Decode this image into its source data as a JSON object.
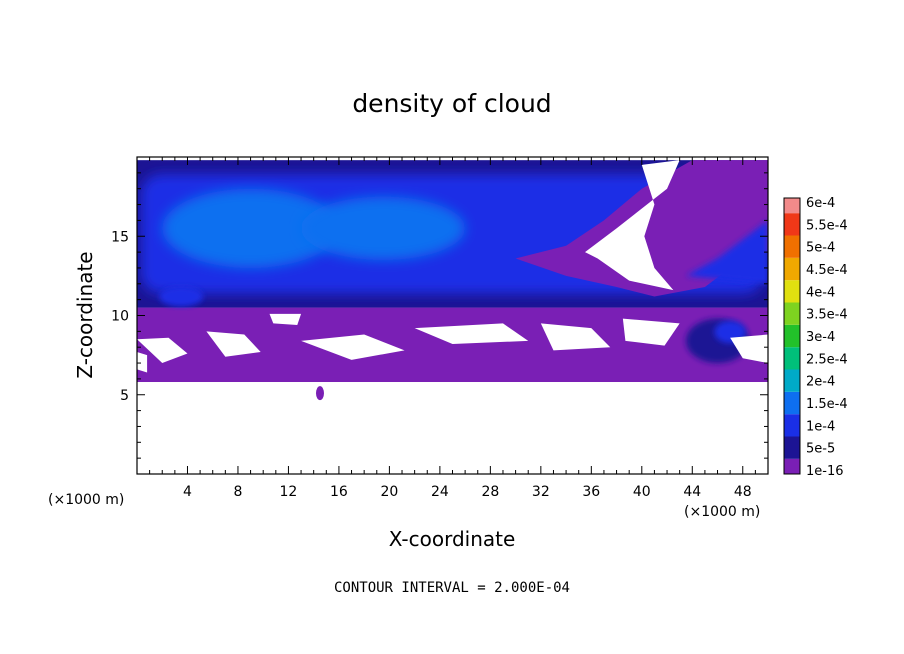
{
  "chart_data": {
    "type": "heatmap",
    "title": "density of cloud",
    "xlabel": "X-coordinate",
    "ylabel": "Z-coordinate",
    "x_unit": "(×1000 m)",
    "y_unit": "(×1000 m)",
    "xlim": [
      0,
      50
    ],
    "ylim": [
      0,
      20
    ],
    "x_ticks": [
      4,
      8,
      12,
      16,
      20,
      24,
      28,
      32,
      36,
      40,
      44,
      48
    ],
    "y_ticks": [
      5,
      10,
      15
    ],
    "footer": "CONTOUR INTERVAL = 2.000E-04",
    "colorbar": {
      "levels": [
        "1e-16",
        "5e-5",
        "1e-4",
        "1.5e-4",
        "2e-4",
        "2.5e-4",
        "3e-4",
        "3.5e-4",
        "4e-4",
        "4.5e-4",
        "5e-4",
        "5.5e-4",
        "6e-4"
      ],
      "colors": [
        "#7a1fb5",
        "#1c1494",
        "#1a2fe6",
        "#0e6ff0",
        "#00aac8",
        "#00c07a",
        "#22c12a",
        "#7ed320",
        "#e0e010",
        "#f0a800",
        "#f07000",
        "#f03818",
        "#f28a8a"
      ]
    },
    "field_regions": [
      {
        "name": "upper cloud layer",
        "x": [
          0,
          50
        ],
        "z": [
          10.5,
          19.8
        ],
        "level": "1e-4",
        "color": "#1a2fe6"
      },
      {
        "name": "core 2-16",
        "x": [
          2,
          16
        ],
        "z": [
          13,
          18
        ],
        "level": "1.5e-4",
        "color": "#0e6ff0"
      },
      {
        "name": "core 14-26",
        "x": [
          13,
          26
        ],
        "z": [
          13.5,
          17.5
        ],
        "level": "1.5e-4",
        "color": "#0e6ff0"
      },
      {
        "name": "lower cloud band",
        "x": [
          0,
          50
        ],
        "z": [
          5.8,
          10.5
        ],
        "level": "1e-16",
        "color": "#7a1fb5"
      },
      {
        "name": "right cell",
        "x": [
          43.5,
          48.5
        ],
        "z": [
          7,
          9.8
        ],
        "level": "5e-5",
        "color": "#1c1494"
      }
    ]
  }
}
